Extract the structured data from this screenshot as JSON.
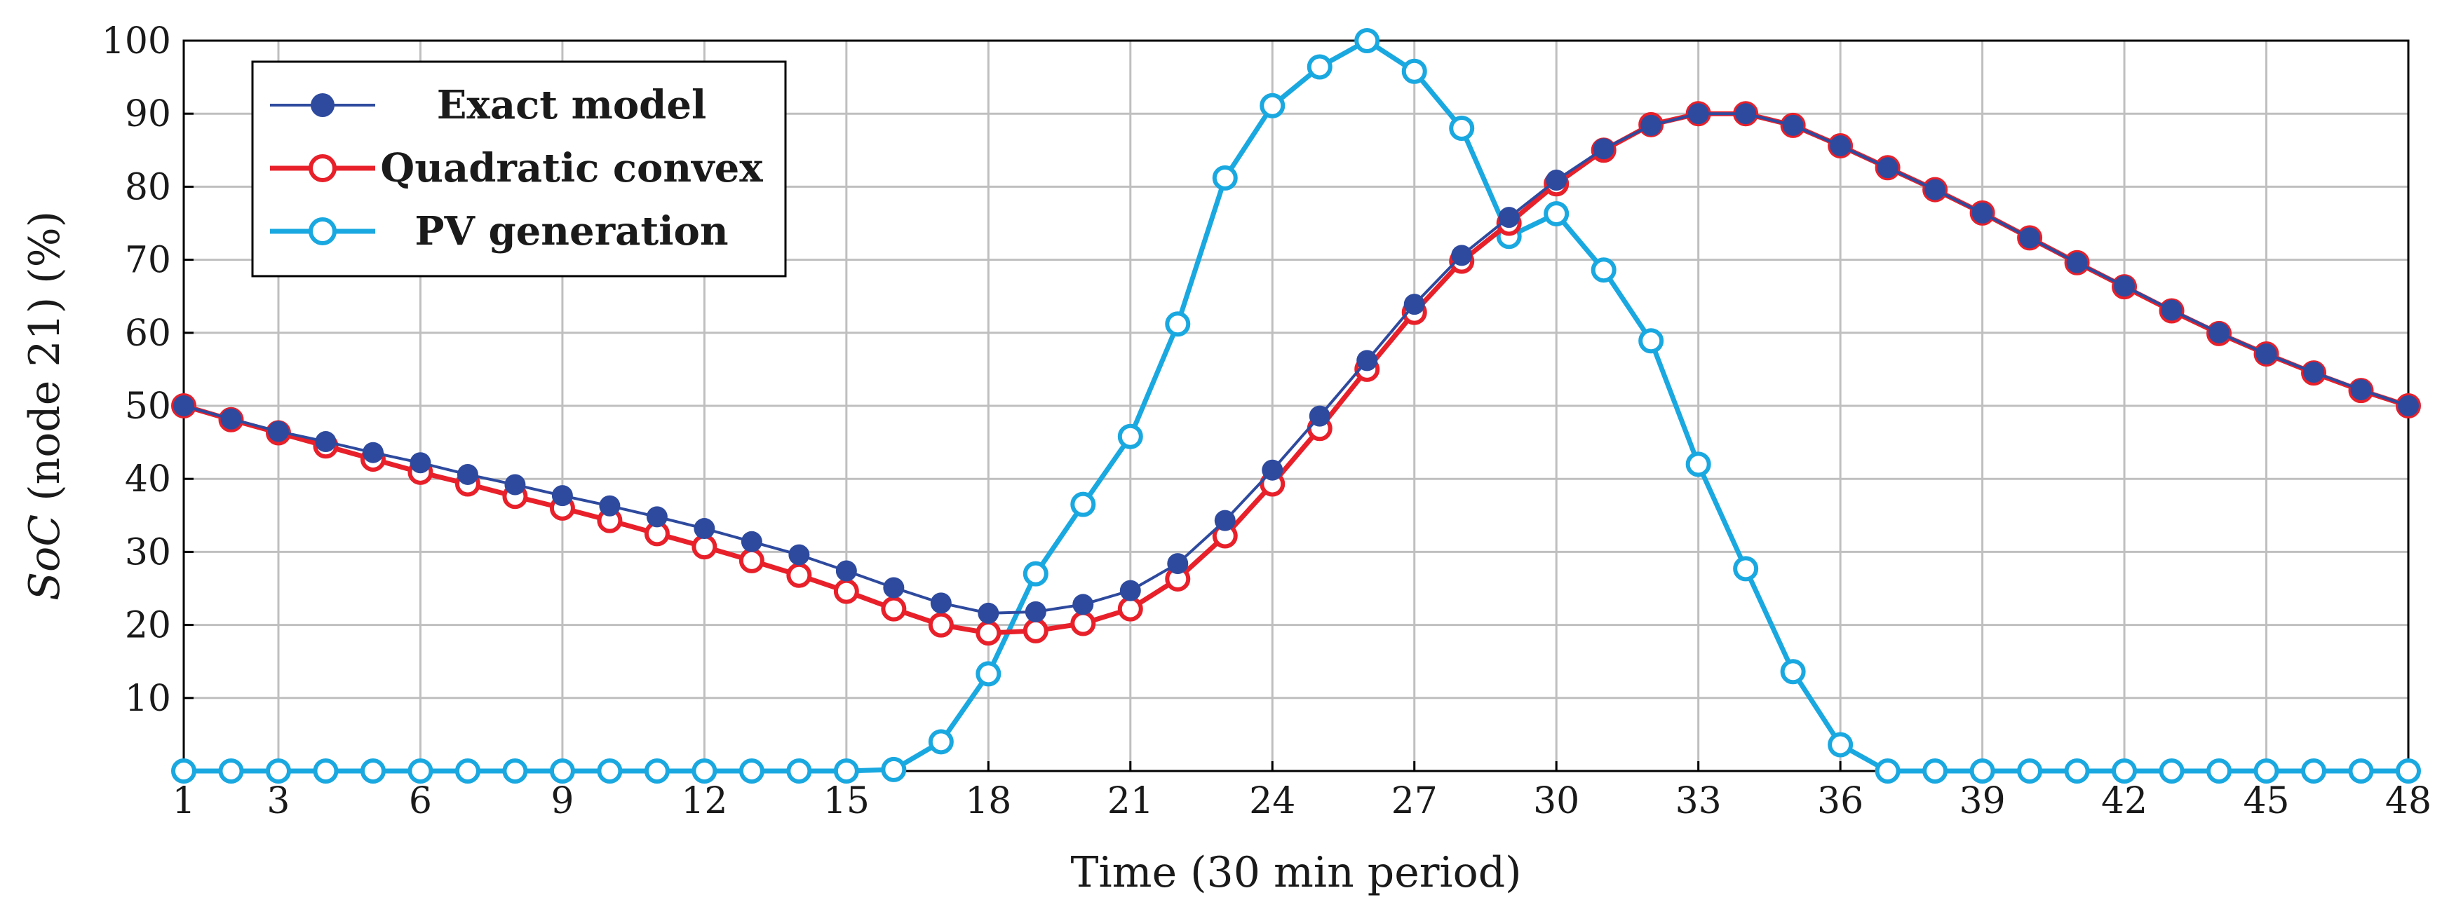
{
  "chart_data": {
    "type": "line",
    "title": "",
    "xlabel": "Time (30 min period)",
    "ylabel": "SoC (node 21) (%)",
    "ylabel_parts": {
      "italic": "SoC",
      "rest": " (node 21) (%)"
    },
    "xlim": [
      1,
      48
    ],
    "ylim": [
      0,
      100
    ],
    "xticks": [
      1,
      3,
      6,
      9,
      12,
      15,
      18,
      21,
      24,
      27,
      30,
      33,
      36,
      39,
      42,
      45,
      48
    ],
    "yticks": [
      10,
      20,
      30,
      40,
      50,
      60,
      70,
      80,
      90,
      100
    ],
    "grid": true,
    "legend_position": "top-left",
    "x": [
      1,
      2,
      3,
      4,
      5,
      6,
      7,
      8,
      9,
      10,
      11,
      12,
      13,
      14,
      15,
      16,
      17,
      18,
      19,
      20,
      21,
      22,
      23,
      24,
      25,
      26,
      27,
      28,
      29,
      30,
      31,
      32,
      33,
      34,
      35,
      36,
      37,
      38,
      39,
      40,
      41,
      42,
      43,
      44,
      45,
      46,
      47,
      48
    ],
    "series": [
      {
        "name": "Exact model",
        "color": "#2e4a9e",
        "marker": "filled-circle",
        "values": [
          50,
          48.2,
          46.5,
          45.1,
          43.6,
          42.2,
          40.6,
          39.2,
          37.7,
          36.3,
          34.8,
          33.2,
          31.4,
          29.6,
          27.4,
          25.1,
          23.0,
          21.6,
          21.8,
          22.8,
          24.7,
          28.4,
          34.3,
          41.2,
          48.6,
          56.2,
          63.9,
          70.6,
          75.8,
          80.9,
          85.2,
          88.4,
          90.0,
          90.0,
          88.4,
          85.6,
          82.6,
          79.6,
          76.4,
          73.0,
          69.6,
          66.4,
          63.1,
          60.0,
          57.1,
          54.6,
          52.2,
          50
        ]
      },
      {
        "name": "Quadratic convex",
        "color": "#e8202a",
        "marker": "open-circle",
        "values": [
          50,
          48.1,
          46.3,
          44.5,
          42.7,
          40.9,
          39.3,
          37.6,
          36.0,
          34.3,
          32.5,
          30.7,
          28.8,
          26.8,
          24.6,
          22.2,
          20.0,
          18.9,
          19.2,
          20.2,
          22.2,
          26.3,
          32.2,
          39.3,
          46.9,
          55.0,
          62.8,
          69.8,
          75.0,
          80.4,
          85.0,
          88.5,
          90.0,
          90.0,
          88.4,
          85.6,
          82.6,
          79.6,
          76.4,
          73.0,
          69.6,
          66.3,
          63.0,
          59.9,
          57.1,
          54.5,
          52.1,
          50
        ]
      },
      {
        "name": "PV generation",
        "color": "#1aa8e0",
        "marker": "open-circle",
        "values": [
          0,
          0,
          0,
          0,
          0,
          0,
          0,
          0,
          0,
          0,
          0,
          0,
          0,
          0,
          0,
          0.2,
          4,
          13.3,
          27,
          36.5,
          45.8,
          61.2,
          81.2,
          91.1,
          96.4,
          100,
          95.8,
          88.0,
          73.2,
          76.3,
          68.6,
          58.9,
          42.0,
          27.7,
          13.6,
          3.6,
          0,
          0,
          0,
          0,
          0,
          0,
          0,
          0,
          0,
          0,
          0,
          0
        ]
      }
    ]
  }
}
